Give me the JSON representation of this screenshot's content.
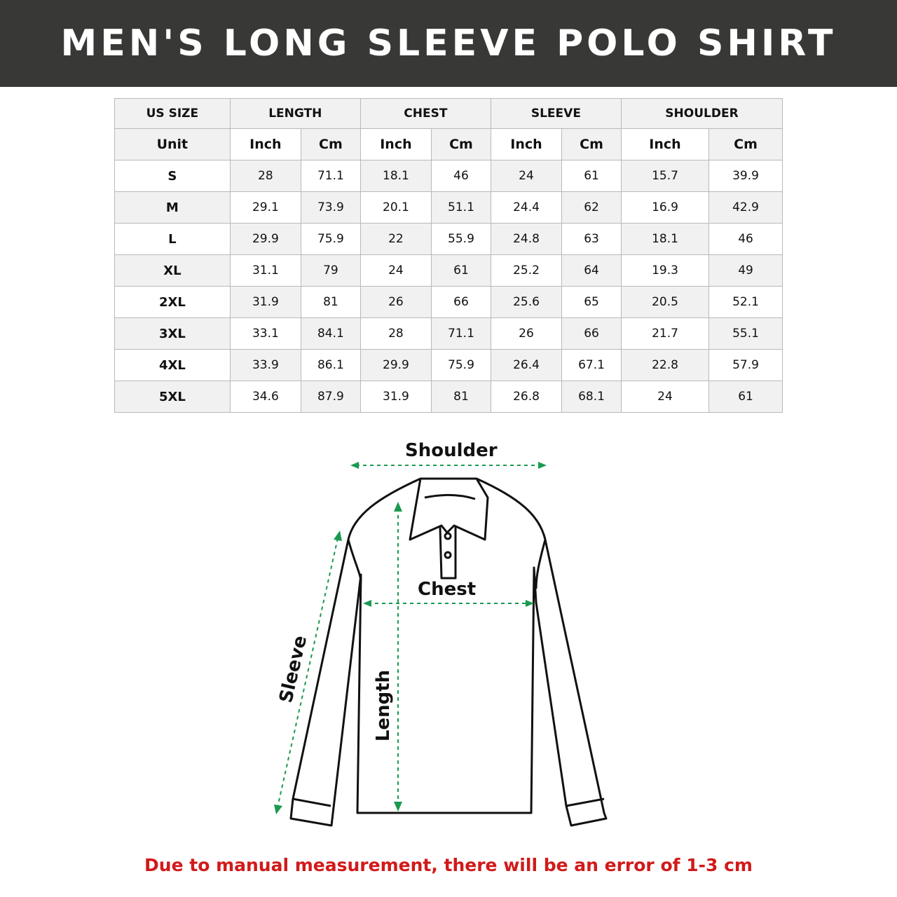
{
  "title": "MEN'S LONG SLEEVE POLO SHIRT",
  "table": {
    "header": [
      "US SIZE",
      "LENGTH",
      "CHEST",
      "SLEEVE",
      "SHOULDER"
    ],
    "units": [
      "Unit",
      "Inch",
      "Cm",
      "Inch",
      "Cm",
      "Inch",
      "Cm",
      "Inch",
      "Cm"
    ],
    "rows": [
      [
        "S",
        "28",
        "71.1",
        "18.1",
        "46",
        "24",
        "61",
        "15.7",
        "39.9"
      ],
      [
        "M",
        "29.1",
        "73.9",
        "20.1",
        "51.1",
        "24.4",
        "62",
        "16.9",
        "42.9"
      ],
      [
        "L",
        "29.9",
        "75.9",
        "22",
        "55.9",
        "24.8",
        "63",
        "18.1",
        "46"
      ],
      [
        "XL",
        "31.1",
        "79",
        "24",
        "61",
        "25.2",
        "64",
        "19.3",
        "49"
      ],
      [
        "2XL",
        "31.9",
        "81",
        "26",
        "66",
        "25.6",
        "65",
        "20.5",
        "52.1"
      ],
      [
        "3XL",
        "33.1",
        "84.1",
        "28",
        "71.1",
        "26",
        "66",
        "21.7",
        "55.1"
      ],
      [
        "4XL",
        "33.9",
        "86.1",
        "29.9",
        "75.9",
        "26.4",
        "67.1",
        "22.8",
        "57.9"
      ],
      [
        "5XL",
        "34.6",
        "87.9",
        "31.9",
        "81",
        "26.8",
        "68.1",
        "24",
        "61"
      ]
    ]
  },
  "diagram": {
    "shoulder": "Shoulder",
    "chest": "Chest",
    "sleeve": "Sleeve",
    "length": "Length",
    "arrow_color": "#1a9a50"
  },
  "note": "Due to manual measurement, there will be an error of 1-3 cm",
  "colors": {
    "banner": "#383836",
    "note": "#d11a1a"
  }
}
